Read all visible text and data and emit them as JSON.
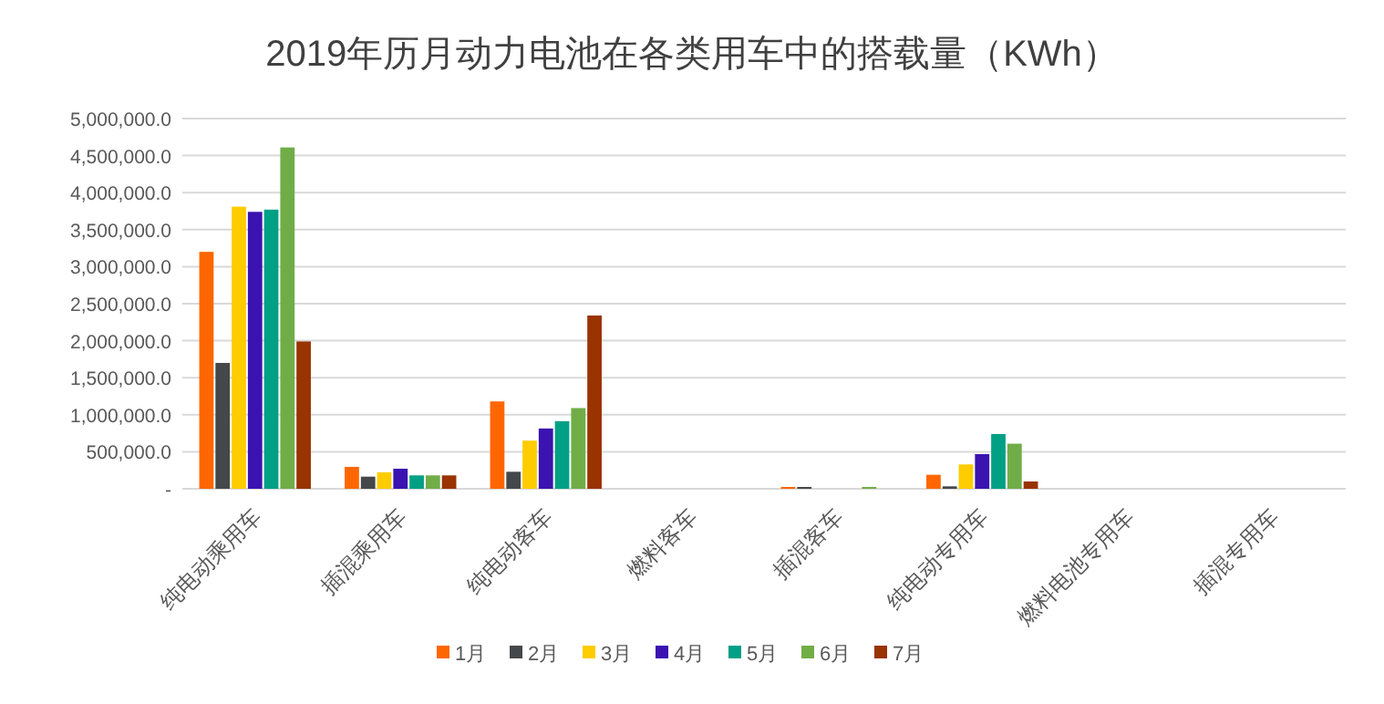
{
  "chart_data": {
    "type": "bar",
    "title": "2019年历月动力电池在各类用车中的搭载量（KWh）",
    "categories": [
      "纯电动乘用车",
      "插混乘用车",
      "纯电动客车",
      "燃料客车",
      "插混客车",
      "纯电动专用车",
      "燃料电池专用车",
      "插混专用车"
    ],
    "series": [
      {
        "name": "1月",
        "color": "#ff6600",
        "values": [
          3200000,
          296000,
          1180000,
          0,
          25000,
          189000,
          0,
          0
        ]
      },
      {
        "name": "2月",
        "color": "#44484a",
        "values": [
          1700000,
          164000,
          230000,
          0,
          25000,
          33000,
          0,
          0
        ]
      },
      {
        "name": "3月",
        "color": "#ffcc00",
        "values": [
          3810000,
          222000,
          650000,
          0,
          0,
          329000,
          0,
          0
        ]
      },
      {
        "name": "4月",
        "color": "#3a13b0",
        "values": [
          3740000,
          271000,
          814000,
          0,
          0,
          469000,
          0,
          0
        ]
      },
      {
        "name": "5月",
        "color": "#00a085",
        "values": [
          3770000,
          181000,
          913000,
          0,
          0,
          740000,
          0,
          0
        ]
      },
      {
        "name": "6月",
        "color": "#70ad47",
        "values": [
          4610000,
          181000,
          1090000,
          0,
          25000,
          609000,
          0,
          0
        ]
      },
      {
        "name": "7月",
        "color": "#993300",
        "values": [
          1990000,
          181000,
          2340000,
          0,
          0,
          99000,
          0,
          0
        ]
      }
    ],
    "ylim": [
      0,
      5000000
    ],
    "yticks": [
      {
        "value": 0,
        "label": "-"
      },
      {
        "value": 500000,
        "label": "500,000.0"
      },
      {
        "value": 1000000,
        "label": "1,000,000.0"
      },
      {
        "value": 1500000,
        "label": "1,500,000.0"
      },
      {
        "value": 2000000,
        "label": "2,000,000.0"
      },
      {
        "value": 2500000,
        "label": "2,500,000.0"
      },
      {
        "value": 3000000,
        "label": "3,000,000.0"
      },
      {
        "value": 3500000,
        "label": "3,500,000.0"
      },
      {
        "value": 4000000,
        "label": "4,000,000.0"
      },
      {
        "value": 4500000,
        "label": "4,500,000.0"
      },
      {
        "value": 5000000,
        "label": "5,000,000.0"
      }
    ],
    "grid": "y",
    "legend": "bottom"
  }
}
